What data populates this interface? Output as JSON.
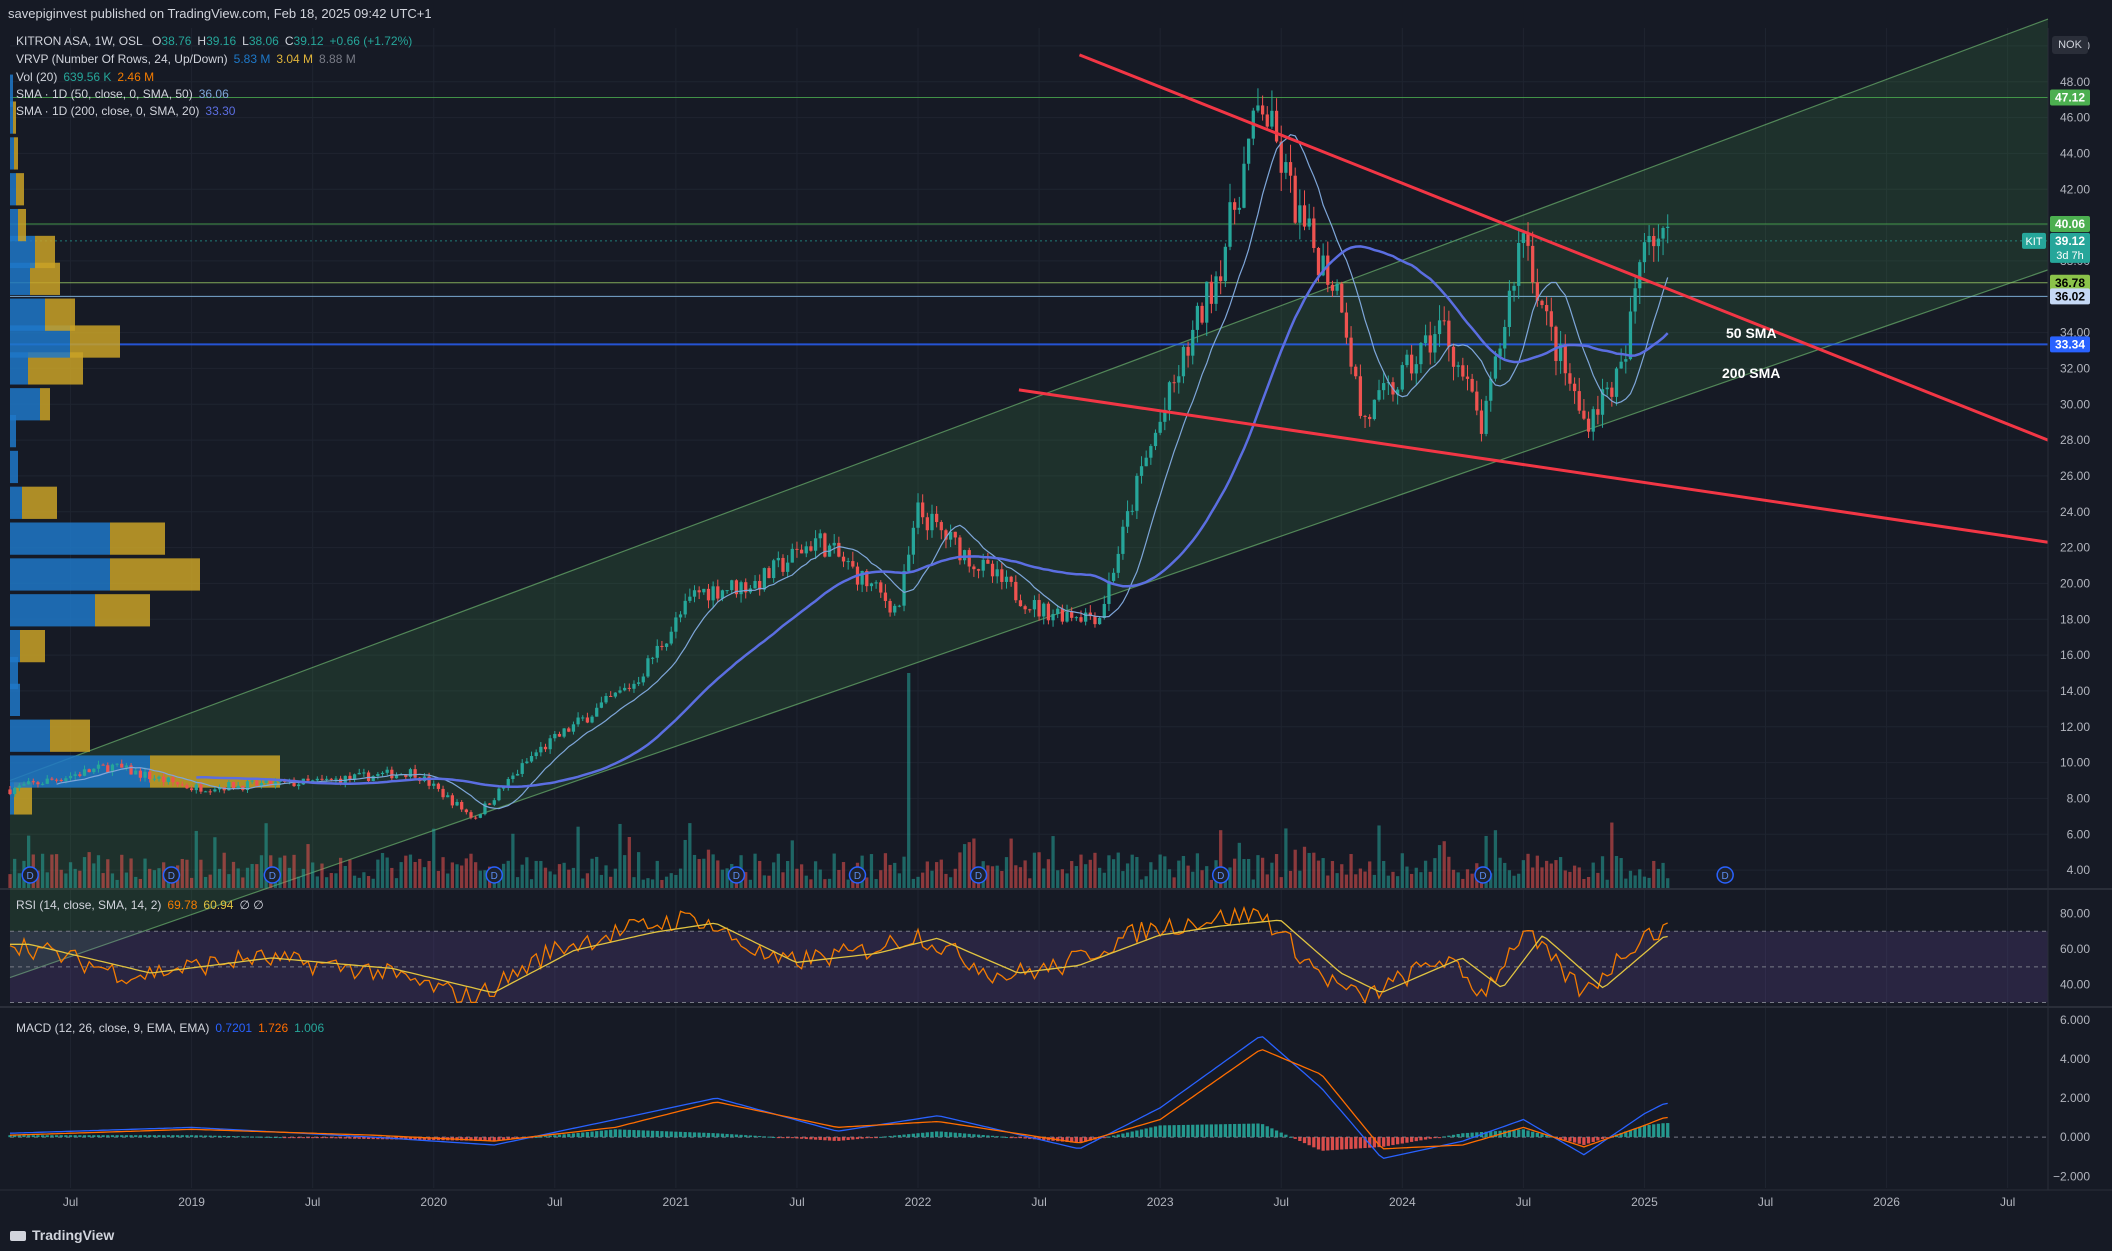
{
  "header": {
    "published": "savepiginvest published on TradingView.com, Feb 18, 2025 09:42 UTC+1"
  },
  "legend": {
    "symbol": "KITRON ASA, 1W, OSL",
    "o_label": "O",
    "o_value": "38.76",
    "h_label": "H",
    "h_value": "39.16",
    "l_label": "L",
    "l_value": "38.06",
    "c_label": "C",
    "c_value": "39.12",
    "change": "+0.66 (+1.72%)",
    "vrvp": "VRVP (Number Of Rows, 24, Up/Down)",
    "vrvp_up": "5.83 M",
    "vrvp_down": "3.04 M",
    "vrvp_total": "8.88 M",
    "vol": "Vol (20)",
    "vol_v1": "639.56 K",
    "vol_v2": "2.46 M",
    "sma50": "SMA · 1D (50, close, 0, SMA, 50)",
    "sma50_v": "36.06",
    "sma200": "SMA · 1D (200, close, 0, SMA, 20)",
    "sma200_v": "33.30",
    "rsi": "RSI (14, close, SMA, 14, 2)",
    "rsi_v1": "69.78",
    "rsi_v2": "60.94",
    "rsi_extra": "∅ ∅",
    "macd": "MACD (12, 26, close, 9, EMA, EMA)",
    "macd_v1": "0.7201",
    "macd_v2": "1.726",
    "macd_v3": "1.006"
  },
  "currency": "NOK",
  "ticker_tag": "KIT",
  "countdown": "3d 7h",
  "annotations": {
    "sma50": "50 SMA",
    "sma200": "200 SMA"
  },
  "dividend_marker": "D",
  "footer": {
    "brand": "TradingView"
  },
  "colors": {
    "bg": "#161a25",
    "up": "#26a69a",
    "down": "#ef5350",
    "sma50": "#5b6ee1",
    "sma200": "#7ea6d9",
    "channel": "#4caf50",
    "trend": "#f23645",
    "rsi": "#f57c00",
    "rsi_ma": "#e0c341",
    "macd": "#2962ff",
    "signal": "#ff6d00",
    "vp_up": "#1e78c8",
    "vp_down": "#c9a227"
  },
  "chart_data": [
    {
      "type": "candlestick",
      "title": "KITRON ASA, 1W, OSL",
      "x_ticks": [
        "Jul",
        "2019",
        "Jul",
        "2020",
        "Jul",
        "2021",
        "Jul",
        "2022",
        "Jul",
        "2023",
        "Jul",
        "2024",
        "Jul",
        "2025",
        "Jul",
        "2026",
        "Jul"
      ],
      "x_range": [
        "2018-04",
        "2026-09"
      ],
      "y_ticks": [
        4,
        6,
        8,
        10,
        12,
        14,
        16,
        18,
        20,
        22,
        24,
        26,
        28,
        30,
        32,
        34,
        36,
        38,
        40,
        42,
        44,
        46,
        48,
        50
      ],
      "y_range": [
        3.0,
        51.0
      ],
      "price_key": [
        [
          "2018-04",
          8.5
        ],
        [
          "2018-09",
          9.8
        ],
        [
          "2019-01",
          8.6
        ],
        [
          "2019-07",
          8.9
        ],
        [
          "2019-12",
          9.5
        ],
        [
          "2020-03",
          6.9
        ],
        [
          "2020-06",
          10.5
        ],
        [
          "2020-11",
          14.5
        ],
        [
          "2021-02",
          19.5
        ],
        [
          "2021-05",
          20.0
        ],
        [
          "2021-08",
          22.5
        ],
        [
          "2021-12",
          18.5
        ],
        [
          "2022-01",
          24.0
        ],
        [
          "2022-04",
          21.0
        ],
        [
          "2022-07",
          18.5
        ],
        [
          "2022-10",
          18.2
        ],
        [
          "2022-12",
          26.0
        ],
        [
          "2023-02",
          32.0
        ],
        [
          "2023-04",
          38.0
        ],
        [
          "2023-06",
          47.0
        ],
        [
          "2023-08",
          40.0
        ],
        [
          "2023-10",
          36.0
        ],
        [
          "2023-11",
          29.0
        ],
        [
          "2024-01",
          31.5
        ],
        [
          "2024-03",
          34.5
        ],
        [
          "2024-05",
          28.5
        ],
        [
          "2024-07",
          40.0
        ],
        [
          "2024-08",
          35.0
        ],
        [
          "2024-10",
          29.0
        ],
        [
          "2024-12",
          32.0
        ],
        [
          "2025-01",
          40.0
        ],
        [
          "2025-02",
          39.12
        ]
      ],
      "levels": [
        47.12,
        40.06,
        36.78,
        36.02,
        33.34
      ],
      "level_labels": [
        "47.12",
        "40.06",
        "36.78",
        "36.02",
        "33.34"
      ],
      "last_price": "39.12",
      "channel": {
        "upper": [
          [
            "2018-04",
            9.0
          ],
          [
            "2026-09",
            51.5
          ]
        ],
        "lower": [
          [
            "2018-04",
            -2.0
          ],
          [
            "2026-09",
            37.5
          ]
        ]
      },
      "trendlines": [
        [
          [
            "2022-09",
            49.5
          ],
          [
            "2026-09",
            28.0
          ]
        ],
        [
          [
            "2022-06",
            30.8
          ],
          [
            "2026-09",
            22.3
          ]
        ]
      ],
      "dividend_dates": [
        "2018-05",
        "2018-12",
        "2019-05",
        "2020-04",
        "2021-04",
        "2021-10",
        "2022-04",
        "2023-04",
        "2024-05",
        "2025-05"
      ]
    },
    {
      "type": "line",
      "title": "RSI (14, close, SMA, 14, 2)",
      "y_ticks": [
        40,
        60,
        80
      ],
      "y_range": [
        28,
        92
      ],
      "bands": [
        30,
        50,
        70
      ],
      "series": [
        {
          "name": "RSI",
          "values_key": [
            [
              "2018-04",
              64
            ],
            [
              "2018-10",
              45
            ],
            [
              "2019-04",
              55
            ],
            [
              "2019-10",
              48
            ],
            [
              "2020-03",
              32
            ],
            [
              "2020-07",
              60
            ],
            [
              "2020-11",
              72
            ],
            [
              "2021-02",
              78
            ],
            [
              "2021-06",
              52
            ],
            [
              "2021-10",
              58
            ],
            [
              "2022-01",
              68
            ],
            [
              "2022-05",
              45
            ],
            [
              "2022-08",
              50
            ],
            [
              "2022-12",
              70
            ],
            [
              "2023-03",
              76
            ],
            [
              "2023-06",
              80
            ],
            [
              "2023-09",
              45
            ],
            [
              "2023-11",
              32
            ],
            [
              "2024-03",
              55
            ],
            [
              "2024-05",
              35
            ],
            [
              "2024-07",
              70
            ],
            [
              "2024-10",
              35
            ],
            [
              "2025-01",
              69
            ],
            [
              "2025-02",
              69.78
            ]
          ]
        }
      ]
    },
    {
      "type": "line",
      "title": "MACD (12, 26, close, 9, EMA, EMA)",
      "y_ticks": [
        -2.0,
        0.0,
        2.0,
        4.0,
        6.0
      ],
      "y_range": [
        -2.6,
        6.5
      ],
      "series": [
        {
          "name": "MACD",
          "values_key": [
            [
              "2018-04",
              0.2
            ],
            [
              "2019-01",
              0.5
            ],
            [
              "2019-10",
              0.0
            ],
            [
              "2020-04",
              -0.4
            ],
            [
              "2020-10",
              0.9
            ],
            [
              "2021-03",
              2.0
            ],
            [
              "2021-09",
              0.3
            ],
            [
              "2022-02",
              1.1
            ],
            [
              "2022-09",
              -0.6
            ],
            [
              "2023-01",
              1.5
            ],
            [
              "2023-06",
              5.2
            ],
            [
              "2023-09",
              2.5
            ],
            [
              "2023-12",
              -1.1
            ],
            [
              "2024-04",
              -0.2
            ],
            [
              "2024-07",
              0.9
            ],
            [
              "2024-10",
              -0.9
            ],
            [
              "2025-01",
              1.2
            ],
            [
              "2025-02",
              1.726
            ]
          ]
        },
        {
          "name": "Signal",
          "values_key": [
            [
              "2018-04",
              0.1
            ],
            [
              "2019-01",
              0.4
            ],
            [
              "2019-10",
              0.1
            ],
            [
              "2020-04",
              -0.2
            ],
            [
              "2020-10",
              0.5
            ],
            [
              "2021-03",
              1.8
            ],
            [
              "2021-09",
              0.5
            ],
            [
              "2022-02",
              0.8
            ],
            [
              "2022-09",
              -0.3
            ],
            [
              "2023-01",
              0.9
            ],
            [
              "2023-06",
              4.5
            ],
            [
              "2023-09",
              3.2
            ],
            [
              "2023-12",
              -0.6
            ],
            [
              "2024-04",
              -0.4
            ],
            [
              "2024-07",
              0.5
            ],
            [
              "2024-10",
              -0.5
            ],
            [
              "2025-01",
              0.6
            ],
            [
              "2025-02",
              1.006
            ]
          ]
        }
      ]
    }
  ]
}
